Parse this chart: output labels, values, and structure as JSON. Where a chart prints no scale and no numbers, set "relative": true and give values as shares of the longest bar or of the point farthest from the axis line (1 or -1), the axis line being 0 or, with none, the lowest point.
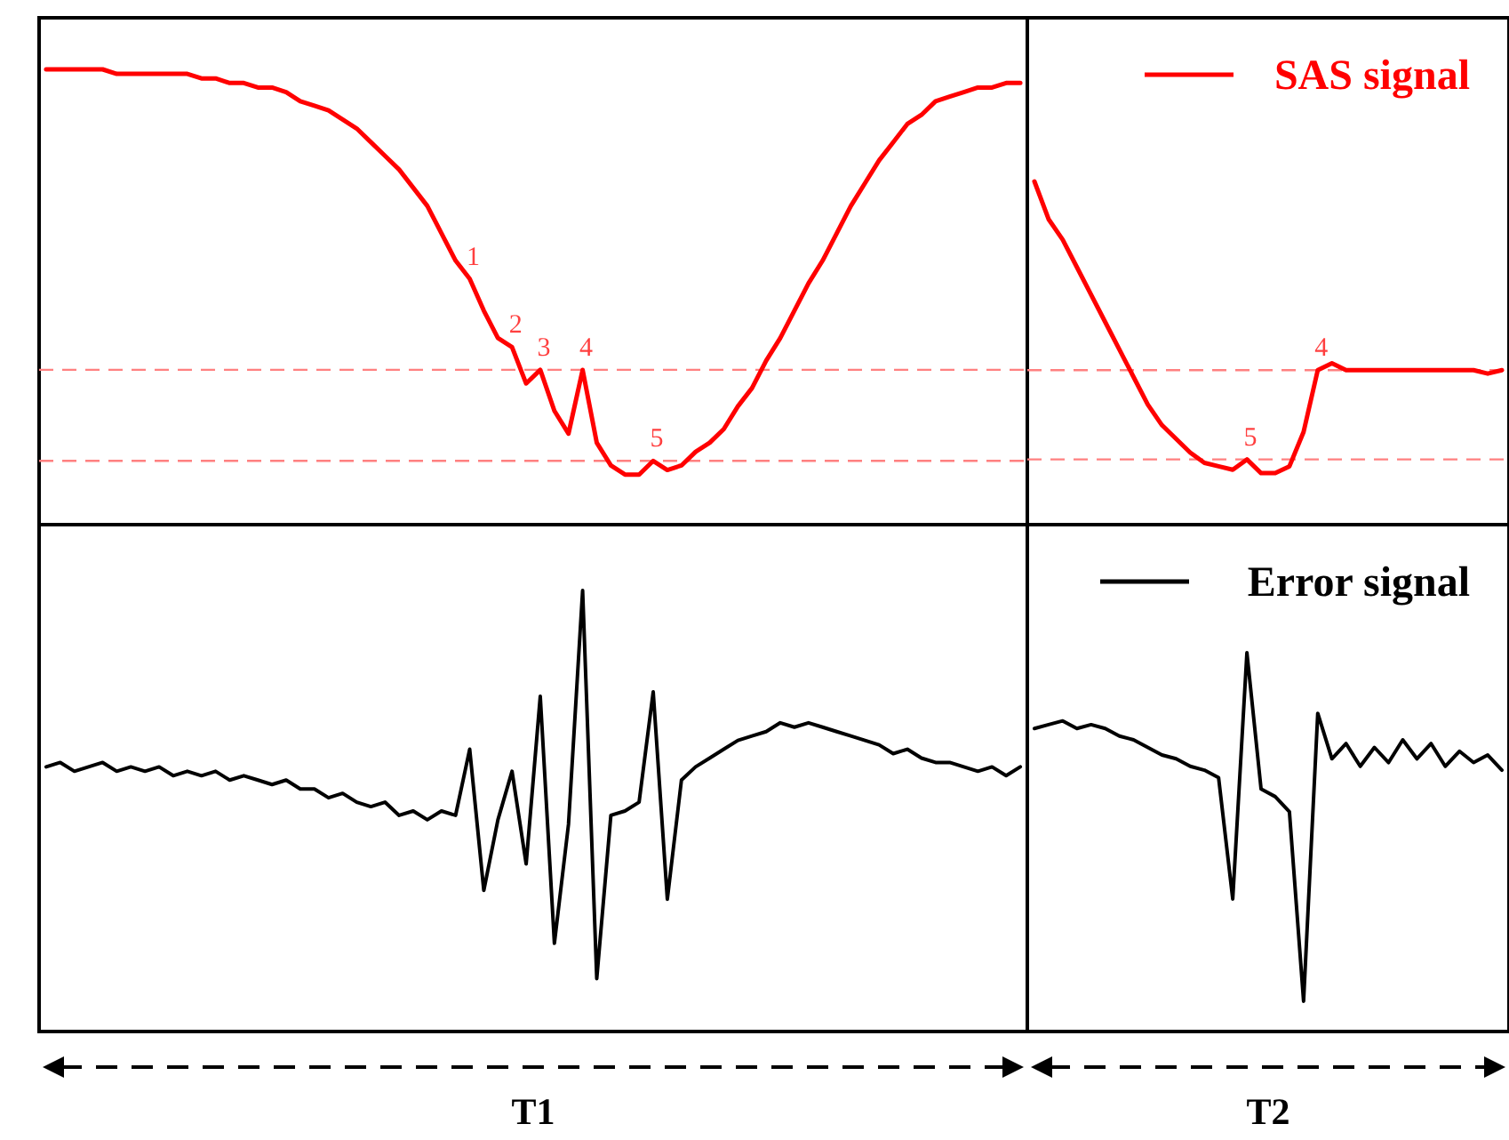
{
  "chart_data": [
    {
      "type": "line",
      "relative": true,
      "categories": [
        null,
        null,
        null,
        null,
        null,
        null,
        null,
        null,
        null,
        null,
        null,
        null,
        null,
        null,
        null,
        null,
        null,
        null,
        null,
        null,
        null,
        null,
        null,
        null,
        null,
        null,
        null,
        null,
        null,
        null,
        null,
        null,
        null,
        null,
        null,
        null,
        null,
        null,
        null,
        null,
        null,
        null,
        null,
        null,
        null,
        null,
        null,
        null,
        null,
        null,
        null,
        null,
        null,
        null,
        null,
        null,
        null,
        null,
        null,
        null,
        null,
        null,
        null,
        null,
        null,
        null,
        null,
        null,
        null,
        null
      ],
      "series": [
        {
          "color": "#ff0000",
          "values": [
            1.0,
            1.0,
            1.0,
            1.0,
            1.0,
            0.99,
            0.99,
            0.99,
            0.99,
            0.99,
            0.99,
            0.98,
            0.98,
            0.97,
            0.97,
            0.96,
            0.96,
            0.95,
            0.93,
            0.92,
            0.91,
            0.89,
            0.87,
            0.84,
            0.81,
            0.78,
            0.74,
            0.7,
            0.64,
            0.58,
            0.54,
            0.47,
            0.41,
            0.39,
            0.31,
            0.34,
            0.25,
            0.2,
            0.34,
            0.18,
            0.13,
            0.11,
            0.11,
            0.14,
            0.12,
            0.13,
            0.16,
            0.18,
            0.21,
            0.26,
            0.3,
            0.36,
            0.41,
            0.47,
            0.53,
            0.58,
            0.64,
            0.7,
            0.75,
            0.8,
            0.84,
            0.88,
            0.9,
            0.93,
            0.94,
            0.95,
            0.96,
            0.96,
            0.97,
            0.97
          ]
        }
      ],
      "ref_lines": [
        {
          "axis": "y",
          "value": 0.34,
          "color": "#ff8080",
          "line_style": "dashed"
        },
        {
          "axis": "y",
          "value": 0.14,
          "color": "#ff8080",
          "line_style": "dashed"
        }
      ],
      "annotations": [
        {
          "text": "1",
          "y": 0.54
        },
        {
          "text": "2",
          "y": 0.39
        },
        {
          "text": "3",
          "y": 0.34
        },
        {
          "text": "4",
          "y": 0.34
        },
        {
          "text": "5",
          "y": 0.14
        }
      ]
    },
    {
      "type": "line",
      "relative": true,
      "legend": "top right",
      "categories": [
        null,
        null,
        null,
        null,
        null,
        null,
        null,
        null,
        null,
        null,
        null,
        null,
        null,
        null,
        null,
        null,
        null,
        null,
        null,
        null,
        null,
        null,
        null,
        null,
        null,
        null,
        null,
        null,
        null,
        null,
        null,
        null,
        null,
        null
      ],
      "series": [
        {
          "name": "SAS signal",
          "color": "#ff0000",
          "values": [
            1.0,
            0.89,
            0.83,
            0.75,
            0.67,
            0.59,
            0.51,
            0.43,
            0.35,
            0.29,
            0.25,
            0.21,
            0.18,
            0.17,
            0.16,
            0.19,
            0.15,
            0.15,
            0.17,
            0.27,
            0.45,
            0.47,
            0.45,
            0.45,
            0.45,
            0.45,
            0.45,
            0.45,
            0.45,
            0.45,
            0.45,
            0.45,
            0.44,
            0.45
          ]
        }
      ],
      "ref_lines": [
        {
          "axis": "y",
          "value": 0.45,
          "color": "#ff8080",
          "line_style": "dashed"
        },
        {
          "axis": "y",
          "value": 0.19,
          "color": "#ff8080",
          "line_style": "dashed"
        }
      ],
      "annotations": [
        {
          "text": "5",
          "y": 0.19
        },
        {
          "text": "4",
          "y": 0.45
        }
      ]
    },
    {
      "type": "line",
      "relative": true,
      "categories": [
        null,
        null,
        null,
        null,
        null,
        null,
        null,
        null,
        null,
        null,
        null,
        null,
        null,
        null,
        null,
        null,
        null,
        null,
        null,
        null,
        null,
        null,
        null,
        null,
        null,
        null,
        null,
        null,
        null,
        null,
        null,
        null,
        null,
        null,
        null,
        null,
        null,
        null,
        null,
        null,
        null,
        null,
        null,
        null,
        null,
        null,
        null,
        null,
        null,
        null,
        null,
        null,
        null,
        null,
        null,
        null,
        null,
        null,
        null,
        null,
        null,
        null,
        null,
        null,
        null,
        null,
        null,
        null,
        null,
        null
      ],
      "series": [
        {
          "color": "#000000",
          "values": [
            0.6,
            0.61,
            0.59,
            0.6,
            0.61,
            0.59,
            0.6,
            0.59,
            0.6,
            0.58,
            0.59,
            0.58,
            0.59,
            0.57,
            0.58,
            0.57,
            0.56,
            0.57,
            0.55,
            0.55,
            0.53,
            0.54,
            0.52,
            0.51,
            0.52,
            0.49,
            0.5,
            0.48,
            0.5,
            0.49,
            0.64,
            0.32,
            0.48,
            0.59,
            0.38,
            0.76,
            0.2,
            0.47,
            1.0,
            0.12,
            0.49,
            0.5,
            0.52,
            0.77,
            0.3,
            0.57,
            0.6,
            0.62,
            0.64,
            0.66,
            0.67,
            0.68,
            0.7,
            0.69,
            0.7,
            0.69,
            0.68,
            0.67,
            0.66,
            0.65,
            0.63,
            0.64,
            0.62,
            0.61,
            0.61,
            0.6,
            0.59,
            0.6,
            0.58,
            0.6
          ]
        }
      ],
      "annotations": [
        "T1"
      ]
    },
    {
      "type": "line",
      "relative": true,
      "legend": "top right",
      "categories": [
        null,
        null,
        null,
        null,
        null,
        null,
        null,
        null,
        null,
        null,
        null,
        null,
        null,
        null,
        null,
        null,
        null,
        null,
        null,
        null,
        null,
        null,
        null,
        null,
        null,
        null,
        null,
        null,
        null,
        null,
        null,
        null,
        null,
        null
      ],
      "series": [
        {
          "name": "Error signal",
          "color": "#000000",
          "values": [
            0.8,
            0.81,
            0.82,
            0.8,
            0.81,
            0.8,
            0.78,
            0.77,
            0.75,
            0.73,
            0.72,
            0.7,
            0.69,
            0.67,
            0.35,
            1.0,
            0.64,
            0.62,
            0.58,
            0.08,
            0.84,
            0.72,
            0.76,
            0.7,
            0.75,
            0.71,
            0.77,
            0.72,
            0.76,
            0.7,
            0.74,
            0.71,
            0.73,
            0.69
          ]
        }
      ],
      "annotations": [
        "T2"
      ]
    }
  ]
}
